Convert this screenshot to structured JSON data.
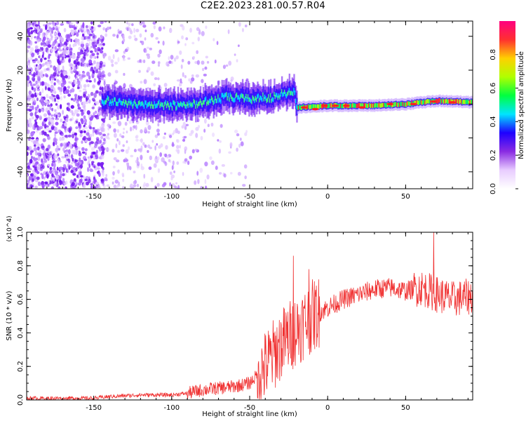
{
  "title": "C2E2.2023.281.00.57.R04",
  "chart_data": [
    {
      "type": "heatmap",
      "xlabel": "Height of straight line (km)",
      "ylabel": "Frequency (Hz)",
      "xlim": [
        -193,
        93
      ],
      "ylim": [
        -50,
        49
      ],
      "xticks": [
        -150,
        -100,
        -50,
        0,
        50
      ],
      "yticks": [
        -40,
        -20,
        0,
        20,
        40
      ],
      "colorbar": {
        "label": "Normalized spectral amplitude",
        "range": [
          0,
          1
        ],
        "ticks": [
          "0.0",
          "0.2",
          "0.4",
          "0.6",
          "0.8"
        ],
        "colors": [
          "#ffffff",
          "#e8ccff",
          "#8a2be2",
          "#1e00ff",
          "#00e5ff",
          "#00ff40",
          "#b0ff00",
          "#ffd000",
          "#ff3030",
          "#ff0080"
        ]
      },
      "ridge": {
        "description": "narrow high-amplitude band near 0 Hz",
        "points": [
          {
            "x": -143,
            "y": 2
          },
          {
            "x": -120,
            "y": 0
          },
          {
            "x": -100,
            "y": -1
          },
          {
            "x": -80,
            "y": 1
          },
          {
            "x": -65,
            "y": 4
          },
          {
            "x": -50,
            "y": 3
          },
          {
            "x": -35,
            "y": 4
          },
          {
            "x": -22,
            "y": 8
          },
          {
            "x": -20,
            "y": -2
          },
          {
            "x": 0,
            "y": -1
          },
          {
            "x": 25,
            "y": -1
          },
          {
            "x": 50,
            "y": 0
          },
          {
            "x": 70,
            "y": 2
          },
          {
            "x": 93,
            "y": 1
          }
        ]
      }
    },
    {
      "type": "line",
      "xlabel": "Height of straight line (km)",
      "ylabel": "SNR (10 * v/v)",
      "yscale_label": "(x10^4)",
      "xlim": [
        -193,
        93
      ],
      "ylim": [
        0,
        1
      ],
      "xticks": [
        -150,
        -100,
        -50,
        0,
        50
      ],
      "yticks": [
        "0.0",
        "0.2",
        "0.4",
        "0.6",
        "0.8",
        "1.0"
      ],
      "color": "#f03030",
      "trend": {
        "x": [
          -193,
          -150,
          -140,
          -120,
          -100,
          -90,
          -80,
          -60,
          -50,
          -40,
          -30,
          -20,
          -10,
          0,
          10,
          20,
          30,
          40,
          50,
          60,
          70,
          80,
          93
        ],
        "y": [
          0.01,
          0.01,
          0.02,
          0.03,
          0.03,
          0.04,
          0.06,
          0.08,
          0.1,
          0.2,
          0.33,
          0.42,
          0.5,
          0.55,
          0.6,
          0.63,
          0.66,
          0.67,
          0.65,
          0.67,
          0.63,
          0.6,
          0.62
        ]
      },
      "peaks": [
        {
          "x": -22,
          "y": 0.86
        },
        {
          "x": -12,
          "y": 0.78
        },
        {
          "x": 68,
          "y": 1.0
        }
      ]
    }
  ]
}
